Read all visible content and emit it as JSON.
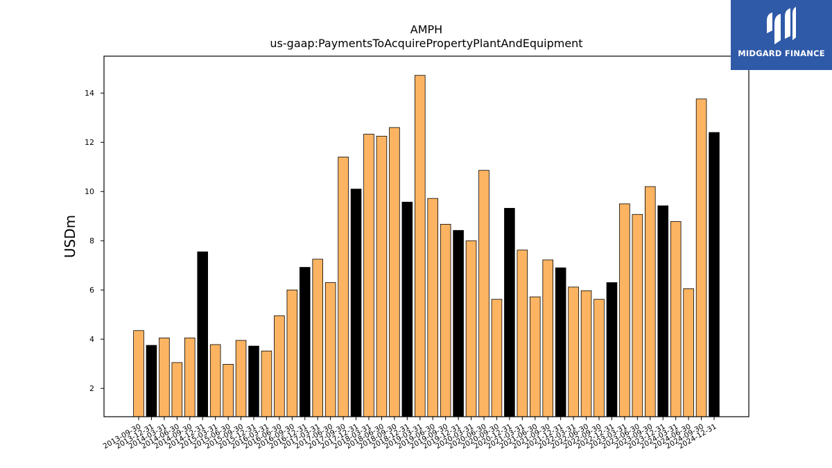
{
  "chart_data": {
    "type": "bar",
    "title": "AMPH",
    "subtitle": "us-gaap:PaymentsToAcquirePropertyPlantAndEquipment",
    "xlabel": "",
    "ylabel": "USDm",
    "ylim": [
      0.85,
      15.5
    ],
    "yticks": [
      2,
      4,
      6,
      8,
      10,
      12,
      14
    ],
    "grid": false,
    "colors": {
      "quarter": "#fdb462",
      "year_end": "#000000",
      "edge": "#000000"
    },
    "categories": [
      "2013-09-30",
      "2013-12-31",
      "2014-03-31",
      "2014-06-30",
      "2014-09-30",
      "2014-12-31",
      "2015-03-31",
      "2015-06-30",
      "2015-09-30",
      "2015-12-31",
      "2016-03-31",
      "2016-06-30",
      "2016-09-30",
      "2016-12-31",
      "2017-03-31",
      "2017-06-30",
      "2017-09-30",
      "2017-12-31",
      "2018-03-31",
      "2018-06-30",
      "2018-09-30",
      "2018-12-31",
      "2019-03-31",
      "2019-06-30",
      "2019-09-30",
      "2019-12-31",
      "2020-03-31",
      "2020-06-30",
      "2020-09-30",
      "2020-12-31",
      "2021-03-31",
      "2021-06-30",
      "2021-09-30",
      "2021-12-31",
      "2022-03-31",
      "2022-06-30",
      "2022-09-30",
      "2022-12-31",
      "2023-03-31",
      "2023-06-30",
      "2023-09-30",
      "2023-12-31",
      "2024-03-31",
      "2024-06-30",
      "2024-09-30",
      "2024-12-31"
    ],
    "values": [
      4.35,
      3.75,
      4.05,
      3.05,
      4.05,
      7.55,
      3.78,
      2.98,
      3.95,
      3.72,
      3.52,
      4.95,
      6.0,
      6.92,
      7.25,
      6.3,
      11.4,
      10.1,
      12.33,
      12.25,
      12.6,
      9.57,
      14.72,
      9.72,
      8.67,
      8.42,
      8.0,
      10.86,
      5.62,
      9.32,
      7.62,
      5.72,
      7.22,
      6.9,
      6.12,
      5.97,
      5.62,
      6.3,
      9.5,
      9.07,
      10.2,
      9.42,
      8.78,
      6.05,
      13.76,
      12.4
    ],
    "year_end": [
      false,
      true,
      false,
      false,
      false,
      true,
      false,
      false,
      false,
      true,
      false,
      false,
      false,
      true,
      false,
      false,
      false,
      true,
      false,
      false,
      false,
      true,
      false,
      false,
      false,
      true,
      false,
      false,
      false,
      true,
      false,
      false,
      false,
      true,
      false,
      false,
      false,
      true,
      false,
      false,
      false,
      true,
      false,
      false,
      false,
      true
    ]
  },
  "logo": {
    "text": "MIDGARD FINANCE"
  }
}
